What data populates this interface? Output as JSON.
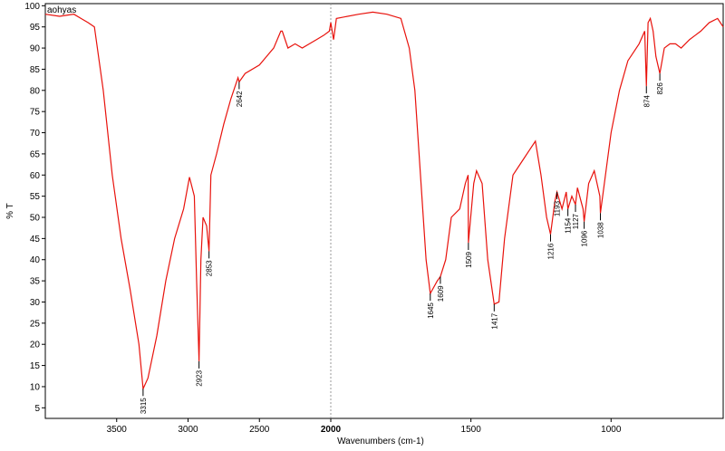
{
  "chart_data": {
    "type": "line",
    "sample_label": "aohyas",
    "xlabel": "Wavenumbers (cm-1)",
    "ylabel": "% T",
    "xlim": [
      4000,
      600
    ],
    "x_scale_break": 2000,
    "xticks": [
      3500,
      3000,
      2500,
      2000,
      1500,
      1000
    ],
    "ylim": [
      2.5,
      100.5
    ],
    "yticks": [
      5,
      10,
      15,
      20,
      25,
      30,
      35,
      40,
      45,
      50,
      55,
      60,
      65,
      70,
      75,
      80,
      85,
      90,
      95,
      100
    ],
    "color": "#e8120c",
    "x": [
      4000,
      3900,
      3800,
      3750,
      3700,
      3656,
      3594,
      3531,
      3469,
      3406,
      3344,
      3315,
      3281,
      3219,
      3156,
      3094,
      3031,
      2990,
      2956,
      2940,
      2923,
      2910,
      2895,
      2870,
      2853,
      2840,
      2800,
      2750,
      2700,
      2650,
      2642,
      2600,
      2500,
      2450,
      2400,
      2350,
      2340,
      2300,
      2250,
      2200,
      2150,
      2100,
      2050,
      2010,
      2000,
      1990,
      1980,
      1900,
      1850,
      1800,
      1750,
      1720,
      1700,
      1680,
      1660,
      1645,
      1620,
      1609,
      1590,
      1570,
      1540,
      1520,
      1510,
      1509,
      1490,
      1480,
      1460,
      1440,
      1417,
      1400,
      1380,
      1350,
      1320,
      1290,
      1270,
      1250,
      1230,
      1216,
      1200,
      1193,
      1175,
      1160,
      1154,
      1140,
      1127,
      1120,
      1100,
      1096,
      1080,
      1060,
      1040,
      1038,
      1020,
      1000,
      970,
      940,
      900,
      880,
      874,
      868,
      860,
      850,
      840,
      826,
      810,
      790,
      770,
      750,
      720,
      700,
      680,
      650,
      620,
      600
    ],
    "values": [
      98,
      97.5,
      98,
      97,
      96,
      95,
      80,
      60,
      45,
      33,
      20,
      9.5,
      12,
      22,
      35,
      45,
      52,
      59.5,
      55,
      35,
      16,
      40,
      50,
      48,
      42,
      60,
      65,
      72,
      78,
      83,
      82,
      84,
      86,
      88,
      90,
      94,
      94,
      90,
      91,
      90,
      91,
      92,
      93,
      94,
      96,
      92,
      97,
      98,
      98.5,
      98,
      97,
      90,
      80,
      60,
      40,
      32,
      35,
      36,
      40,
      50,
      52,
      58,
      60,
      44,
      58,
      61,
      58,
      40,
      29.5,
      30,
      45,
      60,
      63,
      66,
      68,
      60,
      50,
      46,
      54,
      56,
      52,
      56,
      52,
      55,
      53,
      57,
      52,
      49,
      58,
      61,
      55,
      51,
      60,
      70,
      80,
      87,
      91,
      94,
      81,
      96,
      97,
      94,
      88,
      84,
      90,
      91,
      91,
      90,
      92,
      93,
      94,
      96,
      97,
      95
    ],
    "peak_labels": [
      3315,
      2923,
      2853,
      2642,
      1645,
      1609,
      1509,
      1417,
      1216,
      1193,
      1154,
      1127,
      1096,
      1038,
      874,
      826
    ]
  }
}
